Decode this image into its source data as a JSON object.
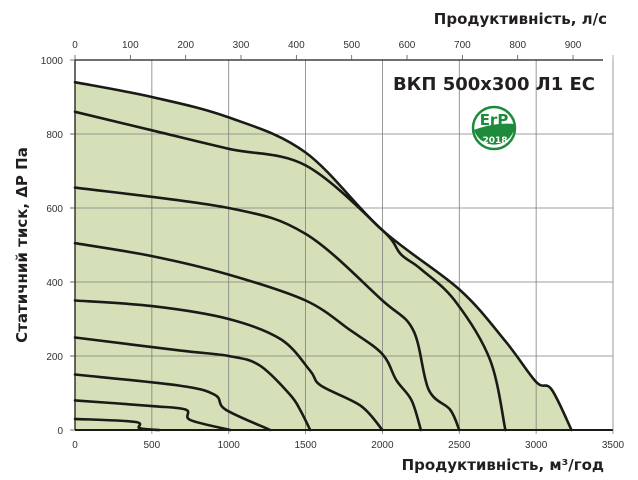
{
  "chart_data": {
    "type": "line",
    "title": "ВКП 500x300 Л1 ЕС",
    "badge": {
      "text_top": "ErP",
      "text_bottom": "2018",
      "color": "#1e8a3c"
    },
    "xlabel": "Продуктивність, м³/год",
    "x2label": "Продуктивність, л/с",
    "ylabel": "Статичний тиск, ΔР Па",
    "xlim": [
      0,
      3500
    ],
    "x2lim": [
      0,
      972
    ],
    "ylim": [
      0,
      1000
    ],
    "x_ticks": [
      "0",
      "500",
      "1000",
      "1500",
      "2000",
      "2500",
      "3000",
      "3500"
    ],
    "x2_ticks": [
      "0",
      "100",
      "200",
      "300",
      "400",
      "500",
      "600",
      "700",
      "800",
      "900"
    ],
    "y_ticks": [
      "0",
      "200",
      "400",
      "600",
      "800",
      "1000"
    ],
    "grid": true,
    "fill_color": "#d5e0b8",
    "line_color": "#1a1a16",
    "series": [
      {
        "name": "max",
        "x": [
          0,
          500,
          1000,
          1500,
          2000,
          2500,
          2800,
          3000,
          3100,
          3230
        ],
        "y": [
          940,
          900,
          845,
          750,
          540,
          380,
          240,
          130,
          110,
          0
        ]
      },
      {
        "name": "curve-1",
        "x": [
          0,
          500,
          1000,
          1500,
          2000,
          2120,
          2250,
          2470,
          2700,
          2800
        ],
        "y": [
          860,
          810,
          760,
          715,
          540,
          475,
          435,
          350,
          190,
          0
        ]
      },
      {
        "name": "curve-2",
        "x": [
          0,
          1000,
          1500,
          2000,
          2200,
          2300,
          2440,
          2500
        ],
        "y": [
          655,
          600,
          530,
          350,
          270,
          110,
          55,
          0
        ]
      },
      {
        "name": "curve-3",
        "x": [
          0,
          500,
          1000,
          1500,
          1790,
          2000,
          2090,
          2190,
          2250
        ],
        "y": [
          505,
          470,
          420,
          350,
          270,
          205,
          135,
          80,
          0
        ]
      },
      {
        "name": "curve-4",
        "x": [
          0,
          500,
          1000,
          1340,
          1530,
          1600,
          1860,
          2000
        ],
        "y": [
          350,
          335,
          300,
          245,
          160,
          120,
          65,
          0
        ]
      },
      {
        "name": "curve-5",
        "x": [
          0,
          680,
          1000,
          1200,
          1400,
          1470,
          1530
        ],
        "y": [
          250,
          215,
          200,
          175,
          95,
          50,
          0
        ]
      },
      {
        "name": "curve-6",
        "x": [
          0,
          680,
          910,
          980,
          1270
        ],
        "y": [
          150,
          120,
          95,
          55,
          0
        ]
      },
      {
        "name": "curve-7",
        "x": [
          0,
          490,
          720,
          750,
          1010
        ],
        "y": [
          80,
          65,
          55,
          27,
          0
        ]
      },
      {
        "name": "curve-8",
        "x": [
          0,
          390,
          420,
          550
        ],
        "y": [
          30,
          22,
          5,
          0
        ]
      }
    ]
  }
}
